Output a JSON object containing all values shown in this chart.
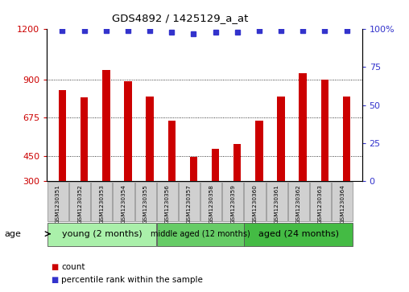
{
  "title": "GDS4892 / 1425129_a_at",
  "samples": [
    "GSM1230351",
    "GSM1230352",
    "GSM1230353",
    "GSM1230354",
    "GSM1230355",
    "GSM1230356",
    "GSM1230357",
    "GSM1230358",
    "GSM1230359",
    "GSM1230360",
    "GSM1230361",
    "GSM1230362",
    "GSM1230363",
    "GSM1230364"
  ],
  "counts": [
    840,
    795,
    960,
    890,
    800,
    660,
    445,
    490,
    520,
    660,
    800,
    940,
    900,
    800
  ],
  "percentiles": [
    99,
    99,
    99,
    99,
    99,
    98,
    97,
    98,
    98,
    99,
    99,
    99,
    99,
    99
  ],
  "groups": [
    {
      "label": "young (2 months)",
      "start": 0,
      "end": 5,
      "color": "#aaf0aa"
    },
    {
      "label": "middle aged (12 months)",
      "start": 5,
      "end": 9,
      "color": "#66cc66"
    },
    {
      "label": "aged (24 months)",
      "start": 9,
      "end": 14,
      "color": "#44bb44"
    }
  ],
  "ymin": 300,
  "ymax": 1200,
  "yticks_left": [
    300,
    450,
    675,
    900,
    1200
  ],
  "yticks_right": [
    0,
    25,
    50,
    75,
    100
  ],
  "ytick_right_labels": [
    "0",
    "25",
    "50",
    "75",
    "100%"
  ],
  "grid_lines": [
    450,
    675,
    900
  ],
  "bar_color": "#cc0000",
  "dot_color": "#3333cc",
  "left_tick_color": "#cc0000",
  "right_tick_color": "#3333cc",
  "sample_box_color": "#d0d0d0",
  "legend_count": "count",
  "legend_pct": "percentile rank within the sample",
  "age_label": "age",
  "bar_width": 0.35
}
